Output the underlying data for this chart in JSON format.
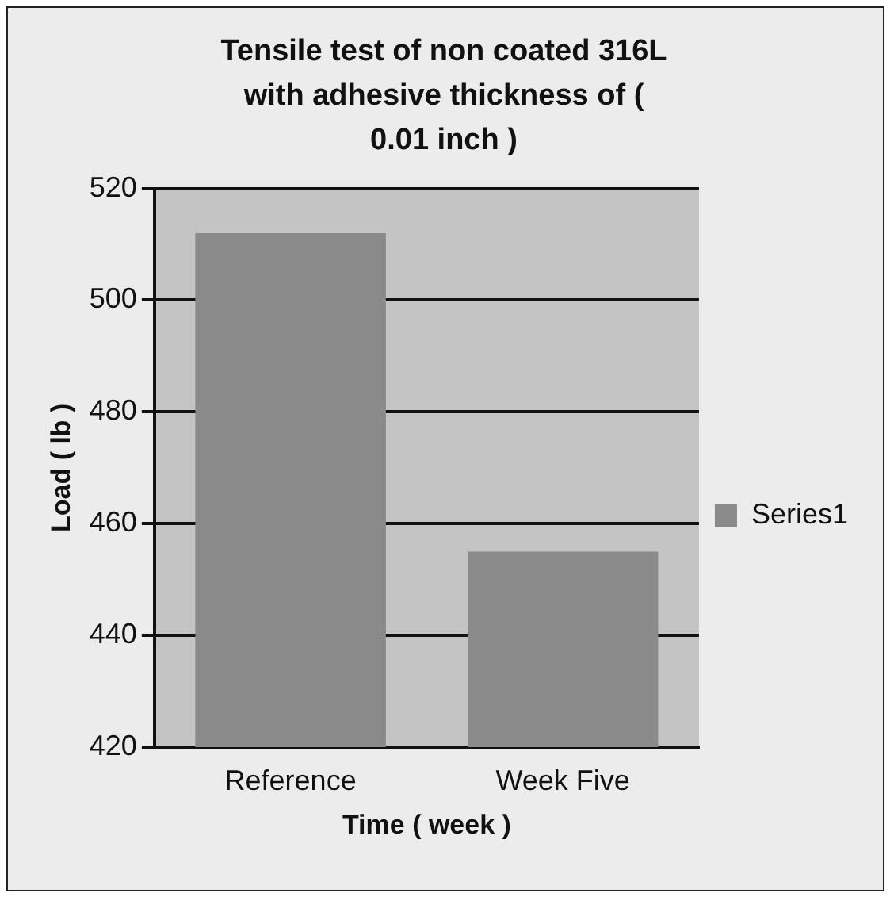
{
  "chart_data": {
    "type": "bar",
    "title": "Tensile test of non coated 316L with adhesive thickness of ( 0.01 inch )",
    "xlabel": "Time ( week )",
    "ylabel": "Load ( lb )",
    "categories": [
      "Reference",
      "Week Five"
    ],
    "series": [
      {
        "name": "Series1",
        "color": "#8a8a8a",
        "values": [
          512,
          455
        ]
      }
    ],
    "ylim": [
      420,
      520
    ],
    "yticks": [
      420,
      440,
      460,
      480,
      500,
      520
    ],
    "grid": "y",
    "legend": "right"
  }
}
